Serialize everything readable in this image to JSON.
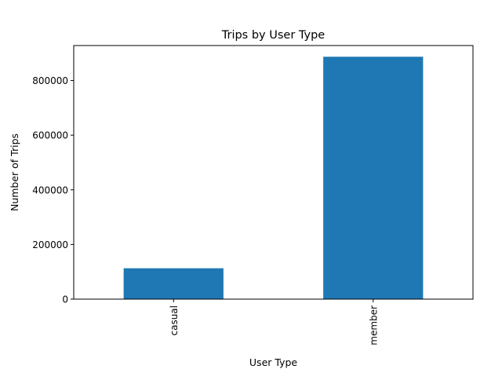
{
  "chart_data": {
    "type": "bar",
    "title": "Trips by User Type",
    "xlabel": "User Type",
    "ylabel": "Number of Trips",
    "categories": [
      "casual",
      "member"
    ],
    "values": [
      113000,
      887000
    ],
    "ylim": [
      0,
      928000
    ],
    "yticks": [
      0,
      200000,
      400000,
      600000,
      800000
    ],
    "ytick_labels": [
      "0",
      "200000",
      "400000",
      "600000",
      "800000"
    ],
    "grid": false,
    "legend": "none",
    "bar_color": "#1f77b4",
    "x_tick_rotation": "vertical"
  }
}
